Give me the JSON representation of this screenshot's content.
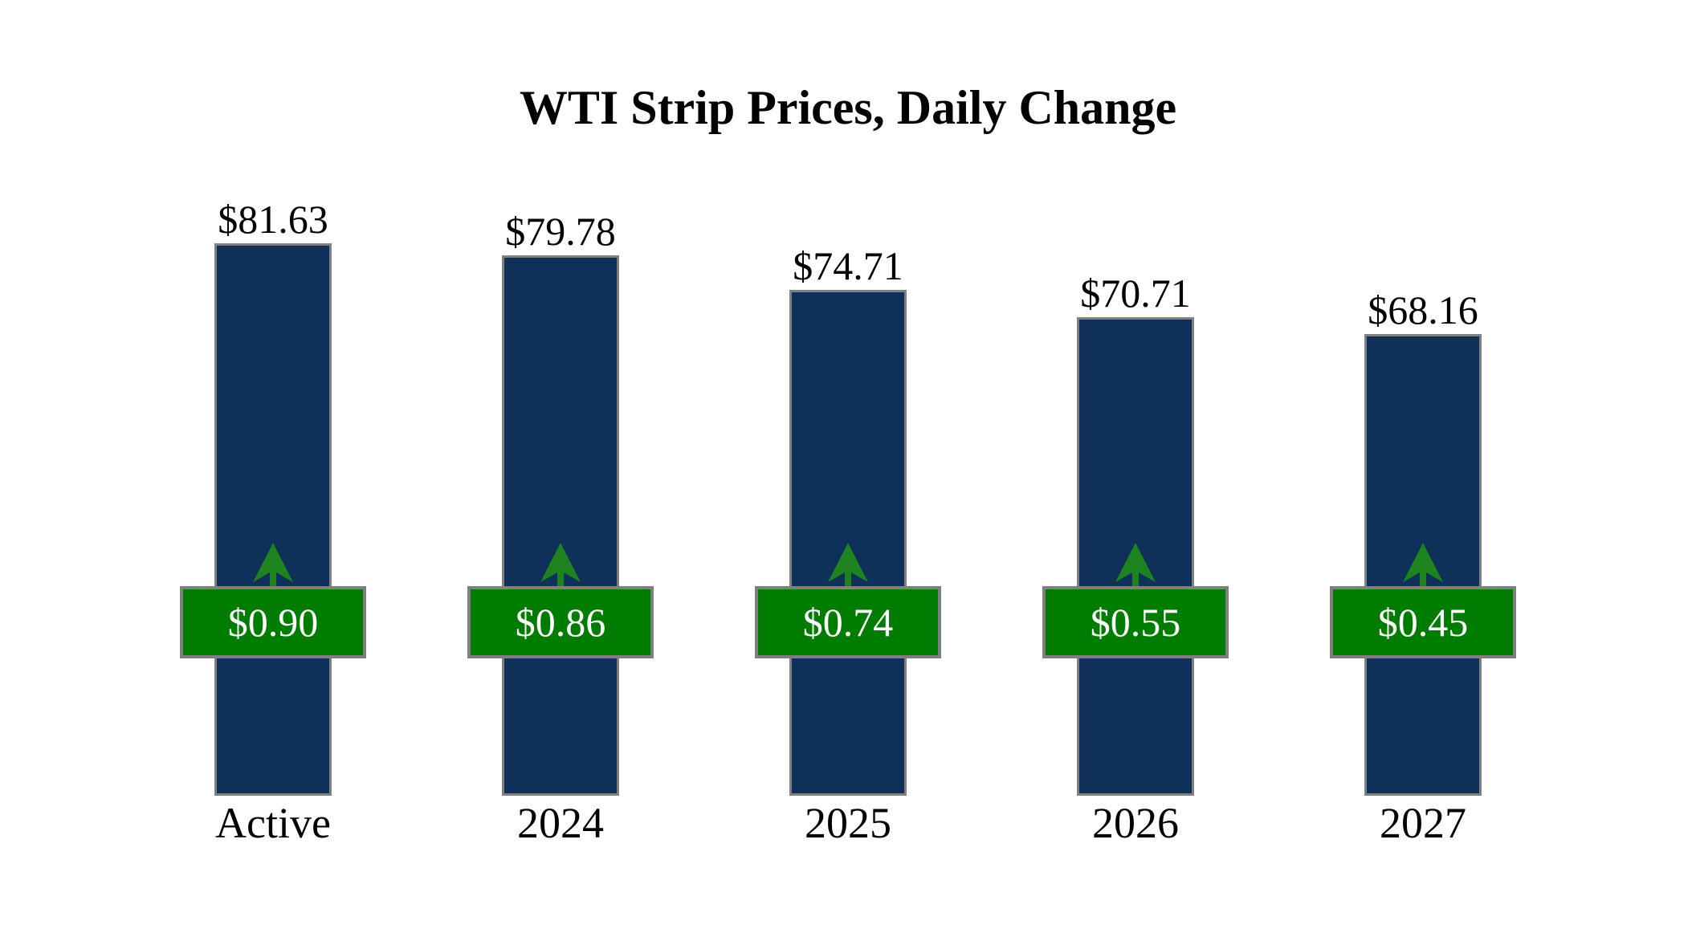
{
  "title": "WTI Strip Prices, Daily Change",
  "chart_data": {
    "type": "bar",
    "title": "WTI Strip Prices, Daily Change",
    "categories": [
      "Active",
      "2024",
      "2025",
      "2026",
      "2027"
    ],
    "series": [
      {
        "name": "Strip Price",
        "values": [
          81.63,
          79.78,
          74.71,
          70.71,
          68.16
        ],
        "labels": [
          "$81.63",
          "$79.78",
          "$74.71",
          "$70.71",
          "$68.16"
        ]
      },
      {
        "name": "Daily Change",
        "values": [
          0.9,
          0.86,
          0.74,
          0.55,
          0.45
        ],
        "labels": [
          "$0.90",
          "$0.86",
          "$0.74",
          "$0.55",
          "$0.45"
        ],
        "direction": "up"
      }
    ],
    "ylim": [
      0,
      86
    ],
    "grid": false,
    "legend": false,
    "axes_shown": false,
    "colors": {
      "bar_fill": "#0E3059",
      "bar_border": "#808080",
      "badge_fill": "#007C00",
      "badge_border": "#7F7F7F",
      "badge_text": "#FFFFFF",
      "arrow_green": "#1E821E",
      "label_text": "#000000",
      "background": "#FFFFFF"
    }
  }
}
